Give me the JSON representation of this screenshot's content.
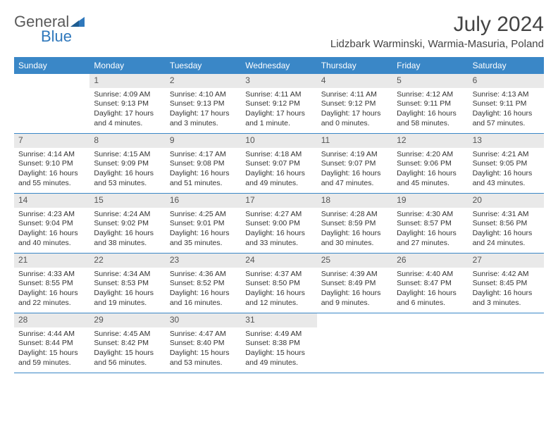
{
  "brand": {
    "part1": "General",
    "part2": "Blue"
  },
  "title": "July 2024",
  "location": "Lidzbark Warminski, Warmia-Masuria, Poland",
  "colors": {
    "header_bg": "#3a87c7",
    "header_text": "#ffffff",
    "brand_blue": "#2f78bc",
    "daynum_bg": "#e9e9e9",
    "border": "#3a87c7",
    "text": "#333333",
    "background": "#ffffff"
  },
  "day_headers": [
    "Sunday",
    "Monday",
    "Tuesday",
    "Wednesday",
    "Thursday",
    "Friday",
    "Saturday"
  ],
  "weeks": [
    [
      null,
      {
        "n": "1",
        "sunrise": "Sunrise: 4:09 AM",
        "sunset": "Sunset: 9:13 PM",
        "daylight": "Daylight: 17 hours and 4 minutes."
      },
      {
        "n": "2",
        "sunrise": "Sunrise: 4:10 AM",
        "sunset": "Sunset: 9:13 PM",
        "daylight": "Daylight: 17 hours and 3 minutes."
      },
      {
        "n": "3",
        "sunrise": "Sunrise: 4:11 AM",
        "sunset": "Sunset: 9:12 PM",
        "daylight": "Daylight: 17 hours and 1 minute."
      },
      {
        "n": "4",
        "sunrise": "Sunrise: 4:11 AM",
        "sunset": "Sunset: 9:12 PM",
        "daylight": "Daylight: 17 hours and 0 minutes."
      },
      {
        "n": "5",
        "sunrise": "Sunrise: 4:12 AM",
        "sunset": "Sunset: 9:11 PM",
        "daylight": "Daylight: 16 hours and 58 minutes."
      },
      {
        "n": "6",
        "sunrise": "Sunrise: 4:13 AM",
        "sunset": "Sunset: 9:11 PM",
        "daylight": "Daylight: 16 hours and 57 minutes."
      }
    ],
    [
      {
        "n": "7",
        "sunrise": "Sunrise: 4:14 AM",
        "sunset": "Sunset: 9:10 PM",
        "daylight": "Daylight: 16 hours and 55 minutes."
      },
      {
        "n": "8",
        "sunrise": "Sunrise: 4:15 AM",
        "sunset": "Sunset: 9:09 PM",
        "daylight": "Daylight: 16 hours and 53 minutes."
      },
      {
        "n": "9",
        "sunrise": "Sunrise: 4:17 AM",
        "sunset": "Sunset: 9:08 PM",
        "daylight": "Daylight: 16 hours and 51 minutes."
      },
      {
        "n": "10",
        "sunrise": "Sunrise: 4:18 AM",
        "sunset": "Sunset: 9:07 PM",
        "daylight": "Daylight: 16 hours and 49 minutes."
      },
      {
        "n": "11",
        "sunrise": "Sunrise: 4:19 AM",
        "sunset": "Sunset: 9:07 PM",
        "daylight": "Daylight: 16 hours and 47 minutes."
      },
      {
        "n": "12",
        "sunrise": "Sunrise: 4:20 AM",
        "sunset": "Sunset: 9:06 PM",
        "daylight": "Daylight: 16 hours and 45 minutes."
      },
      {
        "n": "13",
        "sunrise": "Sunrise: 4:21 AM",
        "sunset": "Sunset: 9:05 PM",
        "daylight": "Daylight: 16 hours and 43 minutes."
      }
    ],
    [
      {
        "n": "14",
        "sunrise": "Sunrise: 4:23 AM",
        "sunset": "Sunset: 9:04 PM",
        "daylight": "Daylight: 16 hours and 40 minutes."
      },
      {
        "n": "15",
        "sunrise": "Sunrise: 4:24 AM",
        "sunset": "Sunset: 9:02 PM",
        "daylight": "Daylight: 16 hours and 38 minutes."
      },
      {
        "n": "16",
        "sunrise": "Sunrise: 4:25 AM",
        "sunset": "Sunset: 9:01 PM",
        "daylight": "Daylight: 16 hours and 35 minutes."
      },
      {
        "n": "17",
        "sunrise": "Sunrise: 4:27 AM",
        "sunset": "Sunset: 9:00 PM",
        "daylight": "Daylight: 16 hours and 33 minutes."
      },
      {
        "n": "18",
        "sunrise": "Sunrise: 4:28 AM",
        "sunset": "Sunset: 8:59 PM",
        "daylight": "Daylight: 16 hours and 30 minutes."
      },
      {
        "n": "19",
        "sunrise": "Sunrise: 4:30 AM",
        "sunset": "Sunset: 8:57 PM",
        "daylight": "Daylight: 16 hours and 27 minutes."
      },
      {
        "n": "20",
        "sunrise": "Sunrise: 4:31 AM",
        "sunset": "Sunset: 8:56 PM",
        "daylight": "Daylight: 16 hours and 24 minutes."
      }
    ],
    [
      {
        "n": "21",
        "sunrise": "Sunrise: 4:33 AM",
        "sunset": "Sunset: 8:55 PM",
        "daylight": "Daylight: 16 hours and 22 minutes."
      },
      {
        "n": "22",
        "sunrise": "Sunrise: 4:34 AM",
        "sunset": "Sunset: 8:53 PM",
        "daylight": "Daylight: 16 hours and 19 minutes."
      },
      {
        "n": "23",
        "sunrise": "Sunrise: 4:36 AM",
        "sunset": "Sunset: 8:52 PM",
        "daylight": "Daylight: 16 hours and 16 minutes."
      },
      {
        "n": "24",
        "sunrise": "Sunrise: 4:37 AM",
        "sunset": "Sunset: 8:50 PM",
        "daylight": "Daylight: 16 hours and 12 minutes."
      },
      {
        "n": "25",
        "sunrise": "Sunrise: 4:39 AM",
        "sunset": "Sunset: 8:49 PM",
        "daylight": "Daylight: 16 hours and 9 minutes."
      },
      {
        "n": "26",
        "sunrise": "Sunrise: 4:40 AM",
        "sunset": "Sunset: 8:47 PM",
        "daylight": "Daylight: 16 hours and 6 minutes."
      },
      {
        "n": "27",
        "sunrise": "Sunrise: 4:42 AM",
        "sunset": "Sunset: 8:45 PM",
        "daylight": "Daylight: 16 hours and 3 minutes."
      }
    ],
    [
      {
        "n": "28",
        "sunrise": "Sunrise: 4:44 AM",
        "sunset": "Sunset: 8:44 PM",
        "daylight": "Daylight: 15 hours and 59 minutes."
      },
      {
        "n": "29",
        "sunrise": "Sunrise: 4:45 AM",
        "sunset": "Sunset: 8:42 PM",
        "daylight": "Daylight: 15 hours and 56 minutes."
      },
      {
        "n": "30",
        "sunrise": "Sunrise: 4:47 AM",
        "sunset": "Sunset: 8:40 PM",
        "daylight": "Daylight: 15 hours and 53 minutes."
      },
      {
        "n": "31",
        "sunrise": "Sunrise: 4:49 AM",
        "sunset": "Sunset: 8:38 PM",
        "daylight": "Daylight: 15 hours and 49 minutes."
      },
      null,
      null,
      null
    ]
  ]
}
